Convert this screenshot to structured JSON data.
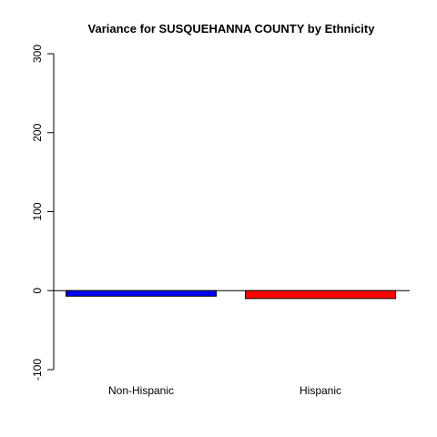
{
  "chart_data": {
    "type": "bar",
    "title": "Variance for SUSQUEHANNA COUNTY by Ethnicity",
    "xlabel": "",
    "ylabel": "",
    "categories": [
      "Non-Hispanic",
      "Hispanic"
    ],
    "values": [
      -7,
      -10
    ],
    "colors": [
      "#0000ff",
      "#ff0000"
    ],
    "ylim": [
      -100,
      300
    ],
    "yticks": [
      -100,
      0,
      100,
      200,
      300
    ],
    "ytick_labels": [
      "-100",
      "0",
      "100",
      "200",
      "300"
    ],
    "zero_line": true,
    "grid": false,
    "legend": "none"
  }
}
